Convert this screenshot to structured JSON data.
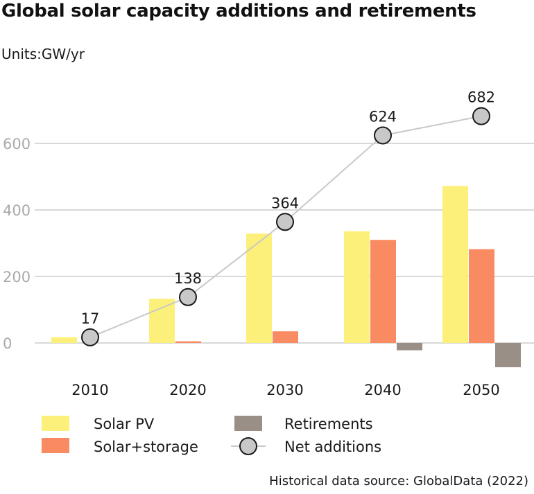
{
  "header": {
    "title": "Global solar capacity additions and retirements",
    "units": "Units:GW/yr"
  },
  "footer": {
    "source": "Historical data source: GlobalData (2022)"
  },
  "colors": {
    "solar_pv": "#fdf07a",
    "solar_storage": "#f98b62",
    "retirements": "#9a8f86",
    "net_line": "#c8c8c8",
    "marker_fill": "#c8c8c8",
    "marker_stroke": "#1a1a1a",
    "grid": "#b0b0b0"
  },
  "chart_data": {
    "type": "bar",
    "title": "Global solar capacity additions and retirements",
    "ylabel": "GW/yr",
    "xlabel": "",
    "categories": [
      "2010",
      "2020",
      "2030",
      "2040",
      "2050"
    ],
    "ylim": [
      -90,
      740
    ],
    "yticks": [
      0,
      200,
      400,
      600
    ],
    "grid": true,
    "legend": "bottom",
    "series": [
      {
        "name": "Solar PV",
        "kind": "bar",
        "values": [
          17,
          133,
          329,
          336,
          472
        ]
      },
      {
        "name": "Solar+storage",
        "kind": "bar",
        "values": [
          0,
          5,
          35,
          310,
          282
        ]
      },
      {
        "name": "Retirements",
        "kind": "bar",
        "values": [
          0,
          0,
          0,
          -22,
          -73
        ]
      },
      {
        "name": "Net additions",
        "kind": "line",
        "values": [
          17,
          138,
          364,
          624,
          682
        ],
        "labels": [
          "17",
          "138",
          "364",
          "624",
          "682"
        ]
      }
    ]
  }
}
